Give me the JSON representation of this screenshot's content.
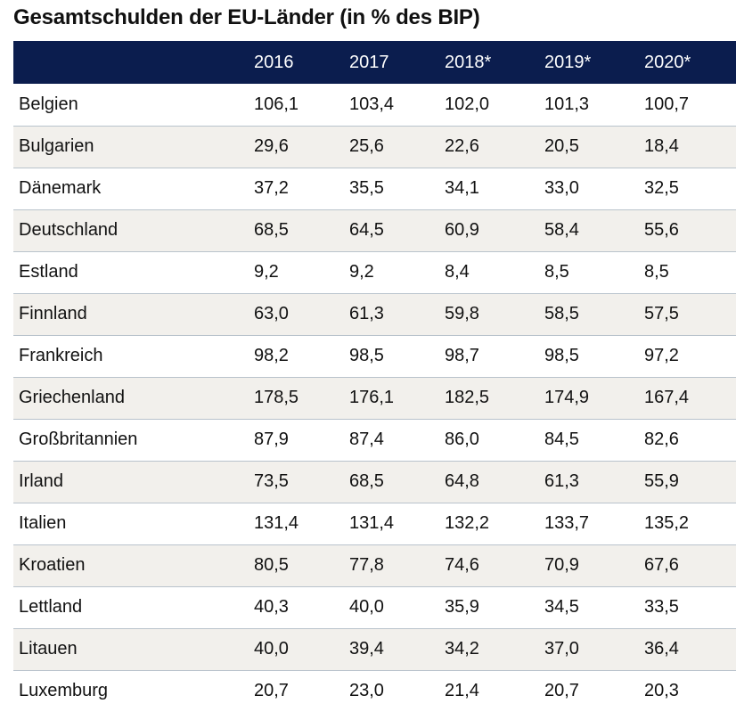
{
  "title": "Gesamtschulden der EU-Länder (in % des BIP)",
  "table": {
    "headers": [
      "",
      "2016",
      "2017",
      "2018*",
      "2019*",
      "2020*"
    ],
    "rows": [
      {
        "country": "Belgien",
        "values": [
          "106,1",
          "103,4",
          "102,0",
          "101,3",
          "100,7"
        ]
      },
      {
        "country": "Bulgarien",
        "values": [
          "29,6",
          "25,6",
          "22,6",
          "20,5",
          "18,4"
        ]
      },
      {
        "country": "Dänemark",
        "values": [
          "37,2",
          "35,5",
          "34,1",
          "33,0",
          "32,5"
        ]
      },
      {
        "country": "Deutschland",
        "values": [
          "68,5",
          "64,5",
          "60,9",
          "58,4",
          "55,6"
        ]
      },
      {
        "country": "Estland",
        "values": [
          "9,2",
          "9,2",
          "8,4",
          "8,5",
          "8,5"
        ]
      },
      {
        "country": "Finnland",
        "values": [
          "63,0",
          "61,3",
          "59,8",
          "58,5",
          "57,5"
        ]
      },
      {
        "country": "Frankreich",
        "values": [
          "98,2",
          "98,5",
          "98,7",
          "98,5",
          "97,2"
        ]
      },
      {
        "country": "Griechenland",
        "values": [
          "178,5",
          "176,1",
          "182,5",
          "174,9",
          "167,4"
        ]
      },
      {
        "country": "Großbritannien",
        "values": [
          "87,9",
          "87,4",
          "86,0",
          "84,5",
          "82,6"
        ]
      },
      {
        "country": "Irland",
        "values": [
          "73,5",
          "68,5",
          "64,8",
          "61,3",
          "55,9"
        ]
      },
      {
        "country": "Italien",
        "values": [
          "131,4",
          "131,4",
          "132,2",
          "133,7",
          "135,2"
        ]
      },
      {
        "country": "Kroatien",
        "values": [
          "80,5",
          "77,8",
          "74,6",
          "70,9",
          "67,6"
        ]
      },
      {
        "country": "Lettland",
        "values": [
          "40,3",
          "40,0",
          "35,9",
          "34,5",
          "33,5"
        ]
      },
      {
        "country": "Litauen",
        "values": [
          "40,0",
          "39,4",
          "34,2",
          "37,0",
          "36,4"
        ]
      },
      {
        "country": "Luxemburg",
        "values": [
          "20,7",
          "23,0",
          "21,4",
          "20,7",
          "20,3"
        ]
      }
    ]
  },
  "colors": {
    "header_bg": "#0b1d4e",
    "header_text": "#ffffff",
    "stripe_bg": "#f2f0ec",
    "row_divider": "#b9c3cc"
  }
}
